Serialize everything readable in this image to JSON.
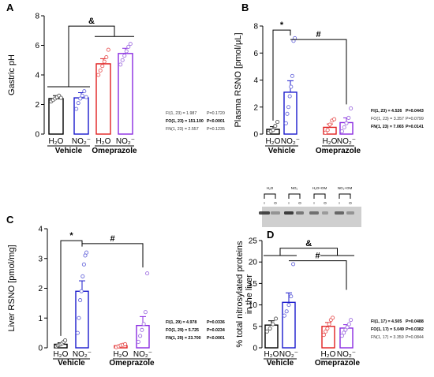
{
  "colors": {
    "h2o_vehicle": "#000000",
    "no2_vehicle": "#1a1acc",
    "h2o_omeprazole": "#e02020",
    "no2_omeprazole": "#8a2be2",
    "dot_h2o_vehicle": "#555555",
    "dot_no2_vehicle": "#6b6bdc",
    "dot_h2o_omeprazole": "#e85a5a",
    "dot_no2_omeprazole": "#a070e0"
  },
  "chart_data": [
    {
      "panel": "A",
      "type": "bar",
      "ylabel": "Gastric pH",
      "ylim": [
        0,
        8
      ],
      "yticks": [
        0,
        2,
        4,
        6,
        8
      ],
      "categories": [
        "H₂O",
        "NO₂⁻",
        "H₂O",
        "NO₂⁻"
      ],
      "groups": [
        "Vehicle",
        "Omeprazole"
      ],
      "values": [
        2.4,
        2.45,
        4.75,
        5.45
      ],
      "errors": [
        0.2,
        0.35,
        0.35,
        0.35
      ],
      "points": [
        [
          2.2,
          2.3,
          2.4,
          2.5,
          2.6,
          2.45
        ],
        [
          1.7,
          2.1,
          2.4,
          2.6,
          2.9,
          2.5
        ],
        [
          4.0,
          4.3,
          4.6,
          4.9,
          5.2,
          5.7
        ],
        [
          4.7,
          5.0,
          5.3,
          5.6,
          5.9,
          6.1
        ]
      ],
      "significance": [
        {
          "label": "&"
        }
      ],
      "stats": [
        {
          "text": "FI(1, 23) = 1.987",
          "p": "P=0.1720",
          "bold": false
        },
        {
          "text": "FO(1, 23) = 151.100",
          "p": "P<0.0001",
          "bold": true
        },
        {
          "text": "FN(1, 23) = 2.557",
          "p": "P=0.1235",
          "bold": false
        }
      ]
    },
    {
      "panel": "B",
      "type": "bar",
      "ylabel": "Plasma RSNO [pmol/μL]",
      "ylim": [
        0,
        8
      ],
      "yticks": [
        0,
        2,
        4,
        6,
        8
      ],
      "categories": [
        "H₂O",
        "NO₂⁻",
        "H₂O",
        "NO₂⁻"
      ],
      "groups": [
        "Vehicle",
        "Omeprazole"
      ],
      "values": [
        0.35,
        3.1,
        0.5,
        0.85
      ],
      "errors": [
        0.2,
        0.85,
        0.25,
        0.35
      ],
      "points": [
        [
          0.1,
          0.2,
          0.3,
          0.6,
          0.9
        ],
        [
          0.8,
          1.5,
          2.0,
          2.8,
          3.5,
          4.3,
          6.9,
          7.1
        ],
        [
          0.1,
          0.3,
          0.7,
          1.0,
          1.1
        ],
        [
          0.2,
          0.5,
          0.8,
          1.2,
          1.9
        ]
      ],
      "significance": [
        {
          "label": "*"
        },
        {
          "label": "#"
        }
      ],
      "stats": [
        {
          "text": "FI(1, 23) = 4.526",
          "p": "P=0.0443",
          "bold": true
        },
        {
          "text": "FO(1, 23) = 3.357",
          "p": "P=0.0799",
          "bold": false
        },
        {
          "text": "FN(1, 23) = 7.065",
          "p": "P=0.0141",
          "bold": true
        }
      ]
    },
    {
      "panel": "C",
      "type": "bar",
      "ylabel": "Liver RSNO [pmol/mg]",
      "ylim": [
        0,
        4
      ],
      "yticks": [
        0,
        1,
        2,
        3,
        4
      ],
      "categories": [
        "H₂O",
        "NO₂⁻",
        "H₂O",
        "NO₂⁻"
      ],
      "groups": [
        "Vehicle",
        "Omeprazole"
      ],
      "values": [
        0.12,
        1.9,
        0.07,
        0.75
      ],
      "errors": [
        0.05,
        0.35,
        0.03,
        0.3
      ],
      "points": [
        [
          0.05,
          0.08,
          0.1,
          0.12,
          0.15,
          0.2,
          0.25
        ],
        [
          0.5,
          1.0,
          1.6,
          1.9,
          2.4,
          2.8,
          3.1,
          3.2
        ],
        [
          0.02,
          0.05,
          0.08,
          0.1,
          0.12
        ],
        [
          0.2,
          0.4,
          0.6,
          0.8,
          1.2,
          2.5
        ]
      ],
      "significance": [
        {
          "label": "*"
        },
        {
          "label": "#"
        }
      ],
      "stats": [
        {
          "text": "FI(1, 29) = 4.978",
          "p": "P=0.0336",
          "bold": true
        },
        {
          "text": "FO(1, 29) = 5.725",
          "p": "P=0.0234",
          "bold": true
        },
        {
          "text": "FN(1, 29) = 23.700",
          "p": "P<0.0001",
          "bold": true
        }
      ]
    },
    {
      "panel": "D",
      "type": "bar",
      "ylabel": "% total nitrosylated proteins in the liver",
      "ylim": [
        0,
        25
      ],
      "yticks": [
        0,
        5,
        10,
        15,
        20,
        25
      ],
      "categories": [
        "H₂O",
        "NO₂⁻",
        "H₂O",
        "NO₂⁻"
      ],
      "groups": [
        "Vehicle",
        "Omeprazole"
      ],
      "values": [
        5.3,
        10.6,
        5.0,
        4.6
      ],
      "errors": [
        1.0,
        2.2,
        0.9,
        0.8
      ],
      "points": [
        [
          3.8,
          4.5,
          5.5,
          6.8
        ],
        [
          7.5,
          8.5,
          10.0,
          12.0,
          19.5
        ],
        [
          3.0,
          3.8,
          4.5,
          5.5,
          6.5,
          7.0
        ],
        [
          2.8,
          3.5,
          4.2,
          4.8,
          5.5,
          6.5
        ]
      ],
      "significance": [
        {
          "label": "&"
        },
        {
          "label": "#"
        }
      ],
      "stats": [
        {
          "text": "FI(1, 17) = 4.505",
          "p": "P=0.0488",
          "bold": true
        },
        {
          "text": "FO(1, 17) = 5.049",
          "p": "P=0.0382",
          "bold": true
        },
        {
          "text": "FN(1, 17) = 3.359",
          "p": "P=0.0844",
          "bold": false
        }
      ]
    }
  ],
  "blot": {
    "lane_labels": [
      "H₂O",
      "NO₂",
      "H₂O+OM",
      "NO₂+OM"
    ],
    "io_labels": [
      "I",
      "O",
      "I",
      "O",
      "I",
      "O",
      "I",
      "O"
    ]
  }
}
